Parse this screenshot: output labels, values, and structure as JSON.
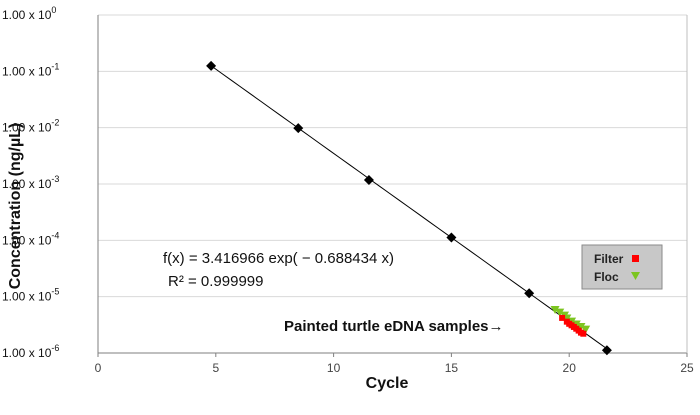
{
  "chart_data": {
    "type": "scatter",
    "xlabel": "Cycle",
    "ylabel": "Concentration (ng/µL)",
    "xlim": [
      0,
      25
    ],
    "ylim": [
      1e-06,
      1
    ],
    "y_scale": "log",
    "x_ticks": [
      0,
      5,
      10,
      15,
      20,
      25
    ],
    "y_ticks": [
      {
        "value": 1.0,
        "mantissa": "1.00 x 10",
        "exp": "0"
      },
      {
        "value": 0.1,
        "mantissa": "1.00 x 10",
        "exp": "-1"
      },
      {
        "value": 0.01,
        "mantissa": "1.00 x 10",
        "exp": "-2"
      },
      {
        "value": 0.001,
        "mantissa": "1.00 x 10",
        "exp": "-3"
      },
      {
        "value": 0.0001,
        "mantissa": "1.00 x 10",
        "exp": "-4"
      },
      {
        "value": 1e-05,
        "mantissa": "1.00 x 10",
        "exp": "-5"
      },
      {
        "value": 1e-06,
        "mantissa": "1.00 x 10",
        "exp": "-6"
      }
    ],
    "grid": "horizontal",
    "legend_position": "right",
    "series": [
      {
        "name": "",
        "marker": "diamond",
        "color": "#000000",
        "points": [
          {
            "x": 4.8,
            "y": 0.125
          },
          {
            "x": 8.5,
            "y": 0.0098
          },
          {
            "x": 11.5,
            "y": 0.00118
          },
          {
            "x": 15.0,
            "y": 0.000112
          },
          {
            "x": 18.3,
            "y": 1.15e-05
          },
          {
            "x": 21.6,
            "y": 1.12e-06
          }
        ]
      },
      {
        "name": "Filter",
        "marker": "square",
        "color": "#ff0000",
        "points": [
          {
            "x": 19.7,
            "y": 4.2e-06
          },
          {
            "x": 19.9,
            "y": 3.6e-06
          },
          {
            "x": 20.0,
            "y": 3.3e-06
          },
          {
            "x": 20.1,
            "y": 3.1e-06
          },
          {
            "x": 20.2,
            "y": 2.9e-06
          },
          {
            "x": 20.3,
            "y": 2.7e-06
          },
          {
            "x": 20.4,
            "y": 2.5e-06
          },
          {
            "x": 20.5,
            "y": 2.3e-06
          },
          {
            "x": 20.6,
            "y": 2.2e-06
          }
        ]
      },
      {
        "name": "Floc",
        "marker": "triangle-down",
        "color": "#7cc520",
        "points": [
          {
            "x": 19.4,
            "y": 5.8e-06
          },
          {
            "x": 19.6,
            "y": 5.2e-06
          },
          {
            "x": 19.8,
            "y": 4.6e-06
          },
          {
            "x": 19.9,
            "y": 4.1e-06
          },
          {
            "x": 20.1,
            "y": 3.6e-06
          },
          {
            "x": 20.3,
            "y": 3.2e-06
          },
          {
            "x": 20.5,
            "y": 2.9e-06
          },
          {
            "x": 20.7,
            "y": 2.6e-06
          }
        ]
      }
    ],
    "trendline": {
      "a": 3.416966,
      "b": -0.688434,
      "x_from": 4.8,
      "x_to": 21.6,
      "color": "#000000"
    },
    "annotations": {
      "equation": "f(x) = 3.416966 exp( − 0.688434 x)",
      "r_squared": "R² = 0.999999",
      "samples_label": "Painted turtle eDNA samples→"
    },
    "legend": [
      "Filter",
      "Floc"
    ]
  }
}
